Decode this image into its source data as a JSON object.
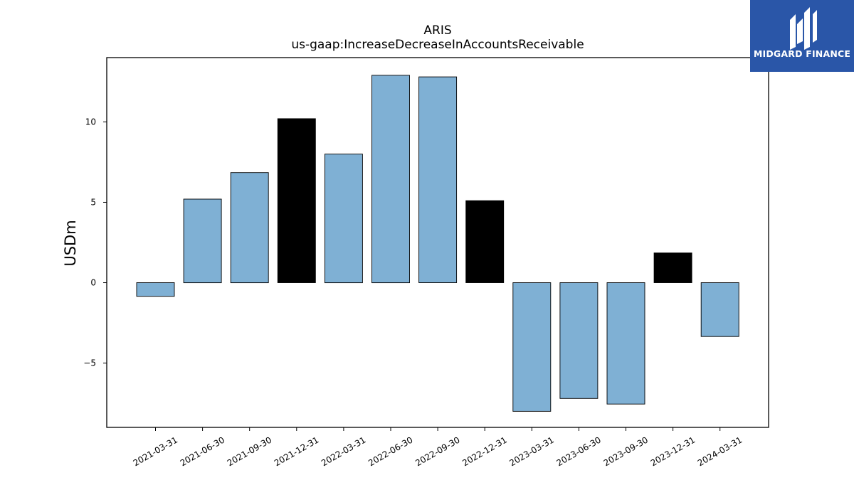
{
  "chart_data": {
    "type": "bar",
    "title": "ARIS",
    "subtitle": "us-gaap:IncreaseDecreaseInAccountsReceivable",
    "ylabel": "USDm",
    "xlabel": "",
    "categories": [
      "2021-03-31",
      "2021-06-30",
      "2021-09-30",
      "2021-12-31",
      "2022-03-31",
      "2022-06-30",
      "2022-09-30",
      "2022-12-31",
      "2023-03-31",
      "2023-06-30",
      "2023-09-30",
      "2023-12-31",
      "2024-03-31"
    ],
    "values": [
      -0.85,
      5.2,
      6.85,
      10.2,
      8.0,
      12.9,
      12.8,
      5.1,
      -8.0,
      -7.2,
      -7.55,
      1.85,
      -3.35
    ],
    "highlight": [
      false,
      false,
      false,
      true,
      false,
      false,
      false,
      true,
      false,
      false,
      false,
      true,
      false
    ],
    "yticks": [
      -5,
      0,
      5,
      10
    ],
    "ylim": [
      -9.0,
      14.0
    ],
    "grid": false,
    "colors": {
      "bar": "#7fb0d4",
      "highlight": "#000000",
      "edge": "#000000"
    }
  },
  "logo": {
    "text": "MIDGARD FINANCE",
    "icon": "midgard-logo-icon",
    "color": "#2a56a8"
  }
}
